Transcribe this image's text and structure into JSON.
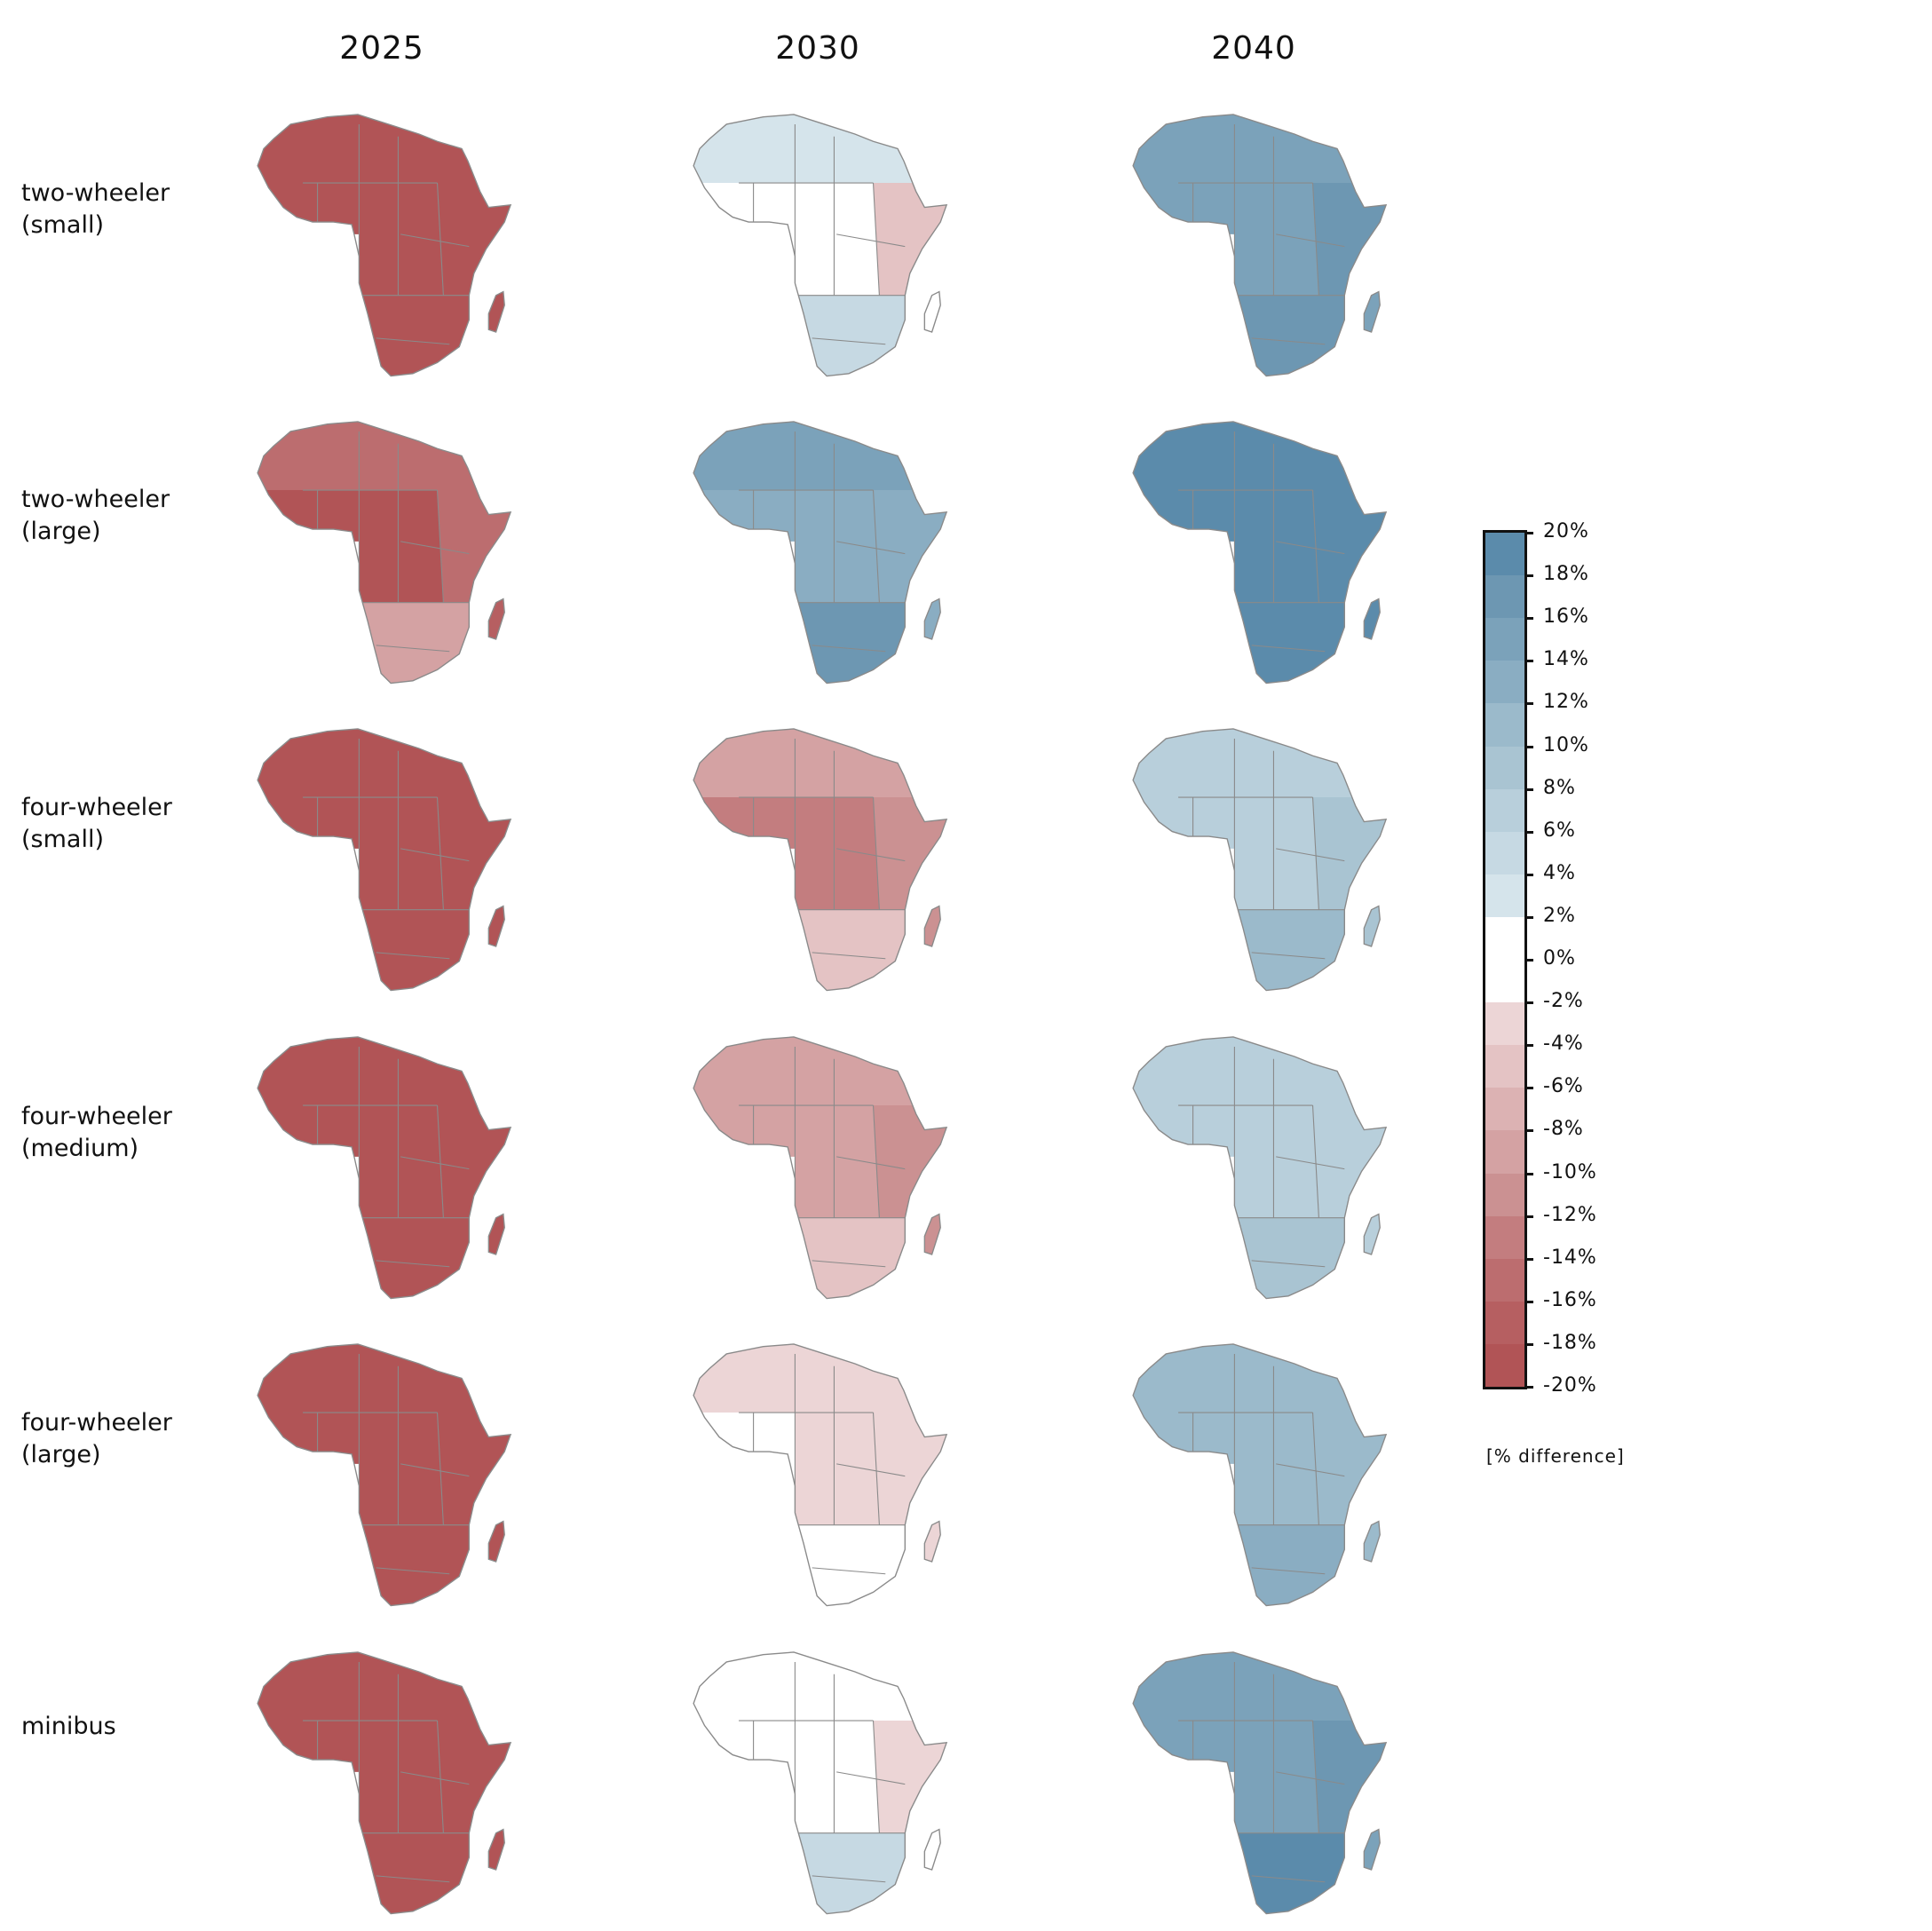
{
  "columns": [
    "2025",
    "2030",
    "2040"
  ],
  "rows": [
    "two-wheeler\n(small)",
    "two-wheeler\n(large)",
    "four-wheeler\n(small)",
    "four-wheeler\n(medium)",
    "four-wheeler\n(large)",
    "minibus"
  ],
  "legend": {
    "title": "[% difference]",
    "ticks": [
      "20%",
      "18%",
      "16%",
      "14%",
      "12%",
      "10%",
      "8%",
      "6%",
      "4%",
      "2%",
      "0%",
      "-2%",
      "-4%",
      "-6%",
      "-8%",
      "-10%",
      "-12%",
      "-14%",
      "-16%",
      "-18%",
      "-20%"
    ],
    "range": [
      -20,
      20
    ],
    "step": 2,
    "colors_top_to_bottom": [
      "#5b8bab",
      "#6d97b2",
      "#7ba2ba",
      "#8aadc2",
      "#9bbacb",
      "#a9c4d2",
      "#b8cfdb",
      "#c6d9e3",
      "#d5e4eb",
      "#ffffff",
      "#ffffff",
      "#ecd5d6",
      "#e4c3c4",
      "#dcb2b3",
      "#d4a2a3",
      "#cb9192",
      "#c37d7f",
      "#bc6d6f",
      "#b65f61",
      "#b15456"
    ]
  },
  "map_data": {
    "regions": [
      "north",
      "west",
      "central",
      "east",
      "south",
      "madagascar"
    ],
    "border_color": "#8a8a8a",
    "values": [
      [
        [
          -19,
          -19,
          -19,
          -19,
          -19,
          -19
        ],
        [
          3,
          0,
          0,
          -5,
          5,
          0
        ],
        [
          15,
          15,
          15,
          17,
          17,
          15
        ]
      ],
      [
        [
          -15,
          -18,
          -18,
          -15,
          -9,
          -16
        ],
        [
          15,
          13,
          13,
          13,
          17,
          13
        ],
        [
          19,
          19,
          19,
          19,
          19,
          19
        ]
      ],
      [
        [
          -19,
          -19,
          -19,
          -19,
          -19,
          -19
        ],
        [
          -9,
          -13,
          -13,
          -11,
          -5,
          -11
        ],
        [
          7,
          7,
          7,
          9,
          11,
          9
        ]
      ],
      [
        [
          -19,
          -19,
          -19,
          -19,
          -19,
          -19
        ],
        [
          -9,
          -9,
          -9,
          -11,
          -5,
          -11
        ],
        [
          7,
          7,
          7,
          7,
          9,
          7
        ]
      ],
      [
        [
          -19,
          -19,
          -19,
          -19,
          -19,
          -19
        ],
        [
          -3,
          -1,
          -3,
          -3,
          0,
          -3
        ],
        [
          11,
          11,
          11,
          11,
          13,
          11
        ]
      ],
      [
        [
          -19,
          -19,
          -19,
          -19,
          -19,
          -19
        ],
        [
          0,
          0,
          0,
          -3,
          5,
          0
        ],
        [
          15,
          15,
          15,
          17,
          19,
          15
        ]
      ]
    ]
  }
}
